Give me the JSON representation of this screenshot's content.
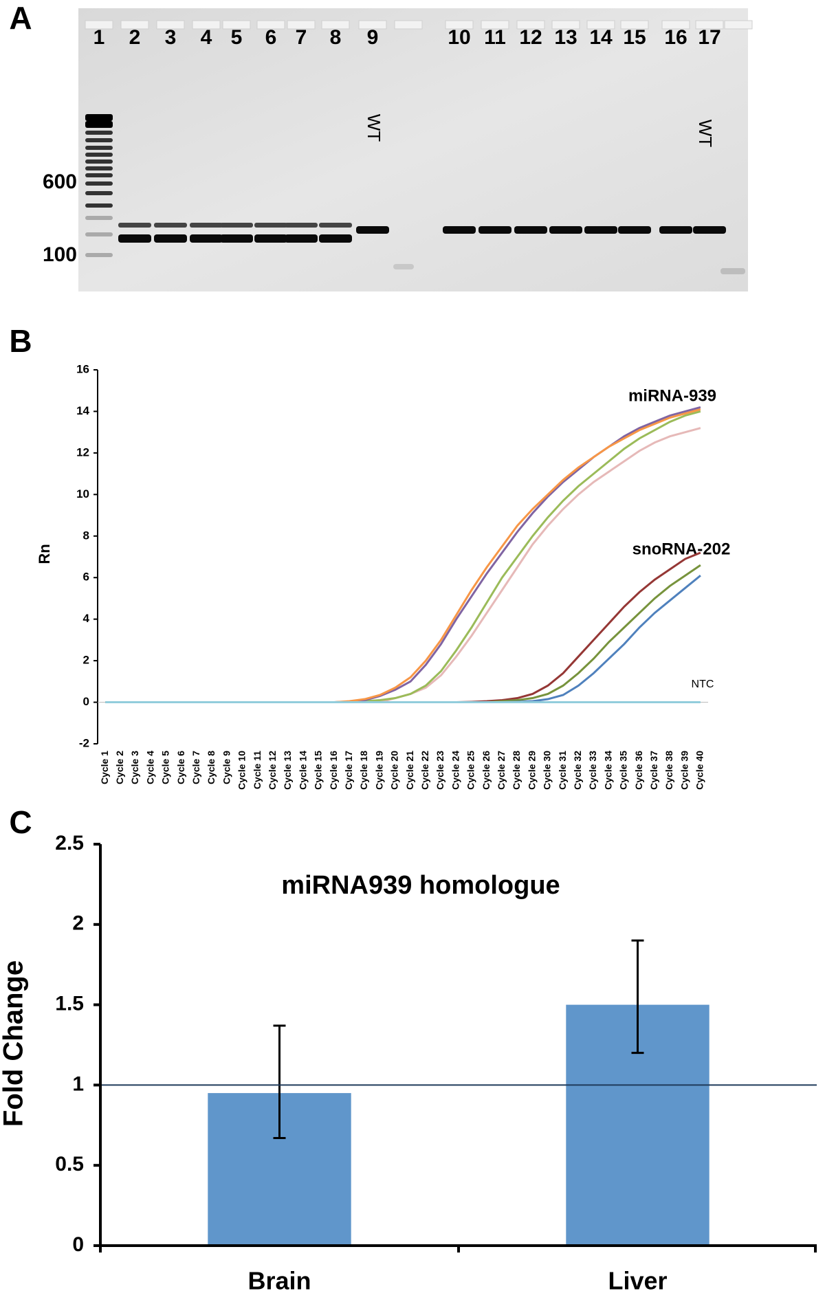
{
  "panel_labels": [
    "A",
    "B",
    "C"
  ],
  "gel": {
    "lanes": [
      "1",
      "2",
      "3",
      "4",
      "5",
      "6",
      "7",
      "8",
      "9",
      "10",
      "11",
      "12",
      "13",
      "14",
      "15",
      "16",
      "17"
    ],
    "markers": [
      600,
      100
    ],
    "wt_labels": [
      "WT",
      "WT"
    ]
  },
  "chart_data": [
    {
      "type": "line",
      "ylabel": "Rn",
      "categories": [
        "Cycle 1",
        "Cycle 2",
        "Cycle 3",
        "Cycle 4",
        "Cycle 5",
        "Cycle 6",
        "Cycle 7",
        "Cycle 8",
        "Cycle 9",
        "Cycle 10",
        "Cycle 11",
        "Cycle 12",
        "Cycle 13",
        "Cycle 14",
        "Cycle 15",
        "Cycle 16",
        "Cycle 17",
        "Cycle 18",
        "Cycle 19",
        "Cycle 20",
        "Cycle 21",
        "Cycle 22",
        "Cycle 23",
        "Cycle 24",
        "Cycle 25",
        "Cycle 26",
        "Cycle 27",
        "Cycle 28",
        "Cycle 29",
        "Cycle 30",
        "Cycle 31",
        "Cycle 32",
        "Cycle 33",
        "Cycle 34",
        "Cycle 35",
        "Cycle 36",
        "Cycle 37",
        "Cycle 38",
        "Cycle 39",
        "Cycle 40"
      ],
      "ylim": [
        -2,
        16
      ],
      "yticks": [
        -2,
        0,
        2,
        4,
        6,
        8,
        10,
        12,
        14,
        16
      ],
      "annotations": [
        "miRNA-939",
        "snoRNA-202",
        "NTC"
      ],
      "series": [
        {
          "color": "#953735",
          "values": [
            0,
            0,
            0,
            0,
            0,
            0,
            0,
            0,
            0,
            0,
            0,
            0,
            0,
            0,
            0,
            0,
            0,
            0,
            0,
            0,
            0,
            0,
            0,
            0,
            0.02,
            0.05,
            0.1,
            0.2,
            0.4,
            0.8,
            1.4,
            2.2,
            3.0,
            3.8,
            4.6,
            5.3,
            5.9,
            6.4,
            6.9,
            7.2
          ]
        },
        {
          "color": "#77933c",
          "values": [
            0,
            0,
            0,
            0,
            0,
            0,
            0,
            0,
            0,
            0,
            0,
            0,
            0,
            0,
            0,
            0,
            0,
            0,
            0,
            0,
            0,
            0,
            0,
            0,
            0,
            0,
            0.05,
            0.1,
            0.2,
            0.4,
            0.8,
            1.4,
            2.1,
            2.9,
            3.6,
            4.3,
            5.0,
            5.6,
            6.1,
            6.6
          ]
        },
        {
          "color": "#4f81bd",
          "values": [
            0,
            0,
            0,
            0,
            0,
            0,
            0,
            0,
            0,
            0,
            0,
            0,
            0,
            0,
            0,
            0,
            0,
            0,
            0,
            0,
            0,
            0,
            0,
            0,
            0,
            0,
            0,
            0.02,
            0.05,
            0.15,
            0.35,
            0.8,
            1.4,
            2.1,
            2.8,
            3.6,
            4.3,
            4.9,
            5.5,
            6.1
          ]
        },
        {
          "color": "#e6b9b8",
          "values": [
            0,
            0,
            0,
            0,
            0,
            0,
            0,
            0,
            0,
            0,
            0,
            0,
            0,
            0,
            0,
            0,
            0,
            0,
            0,
            0.2,
            0.4,
            0.7,
            1.3,
            2.2,
            3.2,
            4.3,
            5.4,
            6.5,
            7.6,
            8.5,
            9.3,
            10.0,
            10.6,
            11.1,
            11.6,
            12.1,
            12.5,
            12.8,
            13.0,
            13.2
          ]
        },
        {
          "color": "#9bbb59",
          "values": [
            0,
            0,
            0,
            0,
            0,
            0,
            0,
            0,
            0,
            0,
            0,
            0,
            0,
            0,
            0,
            0,
            0,
            0.05,
            0.1,
            0.2,
            0.4,
            0.8,
            1.5,
            2.5,
            3.6,
            4.8,
            6.0,
            7.0,
            8.0,
            8.9,
            9.7,
            10.4,
            11.0,
            11.6,
            12.2,
            12.7,
            13.1,
            13.5,
            13.8,
            14.0
          ]
        },
        {
          "color": "#8064a2",
          "values": [
            0,
            0,
            0,
            0,
            0,
            0,
            0,
            0,
            0,
            0,
            0,
            0,
            0,
            0,
            0,
            0,
            0.03,
            0.1,
            0.3,
            0.6,
            1.0,
            1.8,
            2.8,
            4.0,
            5.1,
            6.2,
            7.2,
            8.2,
            9.1,
            9.9,
            10.6,
            11.2,
            11.8,
            12.3,
            12.8,
            13.2,
            13.5,
            13.8,
            14.0,
            14.2
          ]
        },
        {
          "color": "#f79646",
          "values": [
            0,
            0,
            0,
            0,
            0,
            0,
            0,
            0,
            0,
            0,
            0,
            0,
            0,
            0,
            0,
            0,
            0.05,
            0.15,
            0.35,
            0.7,
            1.2,
            2.0,
            3.0,
            4.2,
            5.4,
            6.5,
            7.5,
            8.5,
            9.3,
            10.0,
            10.7,
            11.3,
            11.8,
            12.3,
            12.7,
            13.1,
            13.4,
            13.7,
            13.9,
            14.1
          ]
        },
        {
          "color": "#92cddc",
          "values": [
            0,
            0,
            0,
            0,
            0,
            0,
            0,
            0,
            0,
            0,
            0,
            0,
            0,
            0,
            0,
            0,
            0,
            0,
            0,
            0,
            0,
            0,
            0,
            0,
            0,
            0,
            0,
            0,
            0,
            0,
            0,
            0,
            0,
            0,
            0,
            0,
            0,
            0,
            0,
            0
          ]
        }
      ]
    },
    {
      "type": "bar",
      "title": "miRNA939 homologue",
      "ylabel": "Fold Change",
      "categories": [
        "Brain",
        "Liver"
      ],
      "values": [
        0.95,
        1.5
      ],
      "error_minus": [
        0.28,
        0.3
      ],
      "error_plus": [
        0.42,
        0.4
      ],
      "color": "#6096cb",
      "reference_line": 1,
      "reference_color": "#1f3a5a",
      "ylim": [
        0,
        2.5
      ],
      "yticks": [
        0,
        0.5,
        1,
        1.5,
        2,
        2.5
      ]
    }
  ]
}
